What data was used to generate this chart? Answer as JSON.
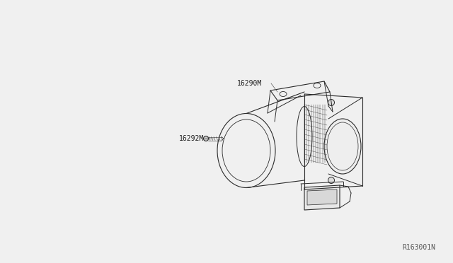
{
  "bg_color": "#f0f0f0",
  "line_color": "#2a2a2a",
  "label_color": "#1a1a1a",
  "ref_color": "#555555",
  "fig_width": 6.4,
  "fig_height": 3.72,
  "dpi": 100,
  "diagram_ref": "R163001N",
  "label1_text": "16290M",
  "label2_text": "16292M",
  "ref_fontsize": 7,
  "label_fontsize": 7
}
